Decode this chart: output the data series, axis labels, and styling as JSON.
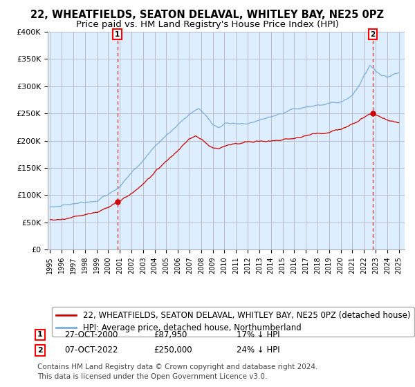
{
  "title": "22, WHEATFIELDS, SEATON DELAVAL, WHITLEY BAY, NE25 0PZ",
  "subtitle": "Price paid vs. HM Land Registry's House Price Index (HPI)",
  "ylim": [
    0,
    400000
  ],
  "yticks": [
    0,
    50000,
    100000,
    150000,
    200000,
    250000,
    300000,
    350000,
    400000
  ],
  "ytick_labels": [
    "£0",
    "£50K",
    "£100K",
    "£150K",
    "£200K",
    "£250K",
    "£300K",
    "£350K",
    "£400K"
  ],
  "hpi_color": "#7aaddb",
  "price_color": "#cc0000",
  "background_color": "#ffffff",
  "chart_bg_color": "#ddeeff",
  "grid_color": "#bbbbcc",
  "legend_label_price": "22, WHEATFIELDS, SEATON DELAVAL, WHITLEY BAY, NE25 0PZ (detached house)",
  "legend_label_hpi": "HPI: Average price, detached house, Northumberland",
  "sale1_date": "27-OCT-2000",
  "sale1_price": 87950,
  "sale1_label": "17% ↓ HPI",
  "sale1_x": 2000.79,
  "sale1_y": 87950,
  "sale2_date": "07-OCT-2022",
  "sale2_price": 250000,
  "sale2_label": "24% ↓ HPI",
  "sale2_x": 2022.77,
  "sale2_y": 250000,
  "footer": "Contains HM Land Registry data © Crown copyright and database right 2024.\nThis data is licensed under the Open Government Licence v3.0.",
  "title_fontsize": 10.5,
  "subtitle_fontsize": 9.5,
  "tick_fontsize": 8,
  "legend_fontsize": 8.5,
  "footer_fontsize": 7.5,
  "xlim_left": 1994.8,
  "xlim_right": 2025.5
}
